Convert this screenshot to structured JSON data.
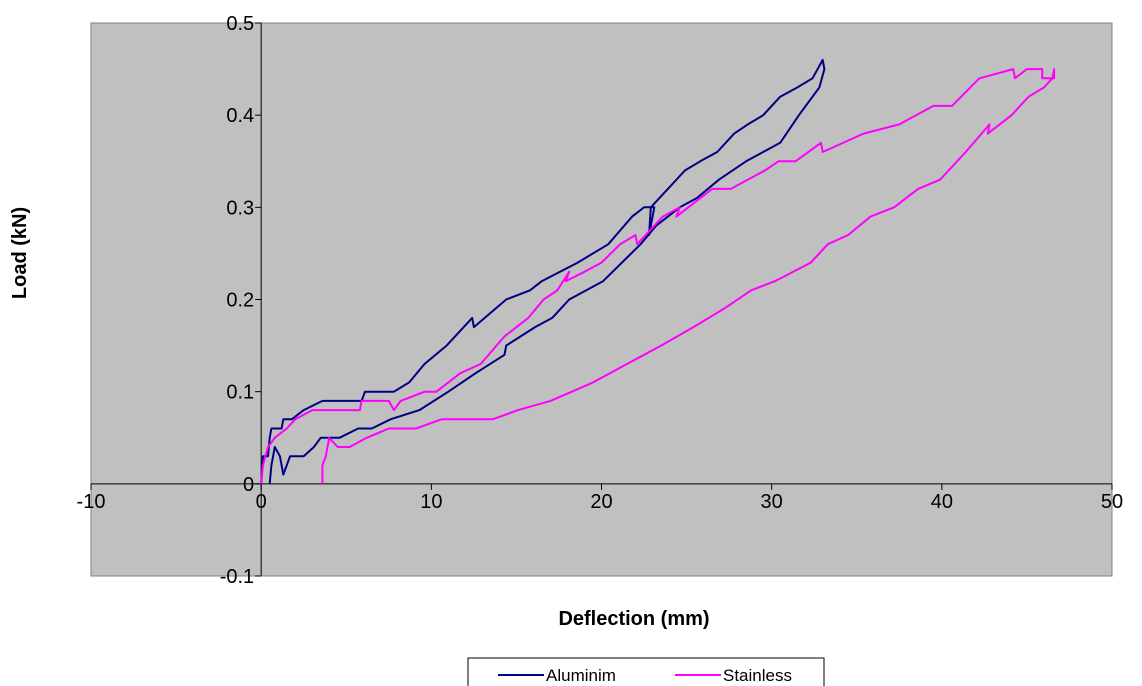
{
  "chart_data": {
    "type": "line",
    "title": "",
    "xlabel": "Deflection (mm)",
    "ylabel": "Load (kN)",
    "xlim": [
      -10,
      50
    ],
    "ylim": [
      -0.1,
      0.5
    ],
    "xticks": [
      "-10",
      "0",
      "10",
      "20",
      "30",
      "40",
      "50"
    ],
    "yticks": [
      "-0.1",
      "0",
      "0.1",
      "0.2",
      "0.3",
      "0.4",
      "0.5"
    ],
    "grid": false,
    "plot_background": "#c0c0c0",
    "legend_position": "bottom",
    "series": [
      {
        "name": "Aluminim",
        "color": "#000080",
        "points": [
          [
            0,
            0
          ],
          [
            0.1,
            0.03
          ],
          [
            0.4,
            0.03
          ],
          [
            0.5,
            0.05
          ],
          [
            0.6,
            0.06
          ],
          [
            0.9,
            0.06
          ],
          [
            1.2,
            0.06
          ],
          [
            1.3,
            0.07
          ],
          [
            1.8,
            0.07
          ],
          [
            2.5,
            0.08
          ],
          [
            3.6,
            0.09
          ],
          [
            5,
            0.09
          ],
          [
            5.9,
            0.09
          ],
          [
            6.1,
            0.1
          ],
          [
            7.8,
            0.1
          ],
          [
            8.7,
            0.11
          ],
          [
            9.6,
            0.13
          ],
          [
            10.9,
            0.15
          ],
          [
            12.4,
            0.18
          ],
          [
            12.5,
            0.17
          ],
          [
            14.4,
            0.2
          ],
          [
            15.8,
            0.21
          ],
          [
            16.5,
            0.22
          ],
          [
            18.6,
            0.24
          ],
          [
            20.4,
            0.26
          ],
          [
            21.8,
            0.29
          ],
          [
            22.5,
            0.3
          ],
          [
            23.1,
            0.3
          ],
          [
            22.8,
            0.27
          ],
          [
            22.9,
            0.3
          ],
          [
            23.9,
            0.32
          ],
          [
            24.9,
            0.34
          ],
          [
            25.8,
            0.35
          ],
          [
            26.8,
            0.36
          ],
          [
            27.8,
            0.38
          ],
          [
            28.6,
            0.39
          ],
          [
            29.5,
            0.4
          ],
          [
            30.5,
            0.42
          ],
          [
            31.5,
            0.43
          ],
          [
            32.4,
            0.44
          ],
          [
            33,
            0.46
          ],
          [
            33.1,
            0.45
          ],
          [
            32.8,
            0.43
          ],
          [
            31.6,
            0.4
          ],
          [
            30.5,
            0.37
          ],
          [
            29.5,
            0.36
          ],
          [
            28.5,
            0.35
          ],
          [
            26.9,
            0.33
          ],
          [
            25.6,
            0.31
          ],
          [
            24.6,
            0.3
          ],
          [
            23.2,
            0.28
          ],
          [
            22.3,
            0.26
          ],
          [
            21.2,
            0.24
          ],
          [
            20.1,
            0.22
          ],
          [
            18.1,
            0.2
          ],
          [
            17.1,
            0.18
          ],
          [
            16.1,
            0.17
          ],
          [
            14.4,
            0.15
          ],
          [
            14.3,
            0.14
          ],
          [
            12.6,
            0.12
          ],
          [
            11,
            0.1
          ],
          [
            9.3,
            0.08
          ],
          [
            7.6,
            0.07
          ],
          [
            6.5,
            0.06
          ],
          [
            5.7,
            0.06
          ],
          [
            4.6,
            0.05
          ],
          [
            3.5,
            0.05
          ],
          [
            3.1,
            0.04
          ],
          [
            2.5,
            0.03
          ],
          [
            1.7,
            0.03
          ],
          [
            1.3,
            0.01
          ],
          [
            1.1,
            0.03
          ],
          [
            0.8,
            0.04
          ],
          [
            0.7,
            0.03
          ],
          [
            0.6,
            0.02
          ],
          [
            0.5,
            0
          ]
        ]
      },
      {
        "name": "Stainless",
        "color": "#ff00ff",
        "points": [
          [
            0,
            0
          ],
          [
            0.1,
            0.02
          ],
          [
            0.4,
            0.04
          ],
          [
            0.8,
            0.05
          ],
          [
            1.5,
            0.06
          ],
          [
            2,
            0.07
          ],
          [
            3,
            0.08
          ],
          [
            4.5,
            0.08
          ],
          [
            5.8,
            0.08
          ],
          [
            5.9,
            0.09
          ],
          [
            7.5,
            0.09
          ],
          [
            7.8,
            0.08
          ],
          [
            8.2,
            0.09
          ],
          [
            9.6,
            0.1
          ],
          [
            10.3,
            0.1
          ],
          [
            11.7,
            0.12
          ],
          [
            12.9,
            0.13
          ],
          [
            14.3,
            0.16
          ],
          [
            15.7,
            0.18
          ],
          [
            16.6,
            0.2
          ],
          [
            17.4,
            0.21
          ],
          [
            18.1,
            0.23
          ],
          [
            17.9,
            0.22
          ],
          [
            19,
            0.23
          ],
          [
            20,
            0.24
          ],
          [
            21.1,
            0.26
          ],
          [
            22,
            0.27
          ],
          [
            22.1,
            0.26
          ],
          [
            23.6,
            0.29
          ],
          [
            24.6,
            0.3
          ],
          [
            24.4,
            0.29
          ],
          [
            26.5,
            0.32
          ],
          [
            27.6,
            0.32
          ],
          [
            29.6,
            0.34
          ],
          [
            30.4,
            0.35
          ],
          [
            31.4,
            0.35
          ],
          [
            32.9,
            0.37
          ],
          [
            33,
            0.36
          ],
          [
            35.4,
            0.38
          ],
          [
            37.5,
            0.39
          ],
          [
            39.5,
            0.41
          ],
          [
            40.6,
            0.41
          ],
          [
            42.2,
            0.44
          ],
          [
            44.2,
            0.45
          ],
          [
            44.3,
            0.44
          ],
          [
            45,
            0.45
          ],
          [
            45.9,
            0.45
          ],
          [
            45.9,
            0.44
          ],
          [
            46.6,
            0.44
          ],
          [
            46.6,
            0.45
          ],
          [
            46.5,
            0.44
          ],
          [
            46,
            0.43
          ],
          [
            45.1,
            0.42
          ],
          [
            44.1,
            0.4
          ],
          [
            42.7,
            0.38
          ],
          [
            42.8,
            0.39
          ],
          [
            41.4,
            0.36
          ],
          [
            39.9,
            0.33
          ],
          [
            38.6,
            0.32
          ],
          [
            37.2,
            0.3
          ],
          [
            35.8,
            0.29
          ],
          [
            34.5,
            0.27
          ],
          [
            33.3,
            0.26
          ],
          [
            32.3,
            0.24
          ],
          [
            30.2,
            0.22
          ],
          [
            28.8,
            0.21
          ],
          [
            27.2,
            0.19
          ],
          [
            25.4,
            0.17
          ],
          [
            23.5,
            0.15
          ],
          [
            21.5,
            0.13
          ],
          [
            19.5,
            0.11
          ],
          [
            17,
            0.09
          ],
          [
            15.1,
            0.08
          ],
          [
            13.6,
            0.07
          ],
          [
            11.9,
            0.07
          ],
          [
            10.6,
            0.07
          ],
          [
            9.1,
            0.06
          ],
          [
            7.5,
            0.06
          ],
          [
            6.2,
            0.05
          ],
          [
            5.2,
            0.04
          ],
          [
            4.5,
            0.04
          ],
          [
            4,
            0.05
          ],
          [
            3.8,
            0.03
          ],
          [
            3.6,
            0.02
          ],
          [
            3.6,
            0
          ]
        ]
      }
    ]
  }
}
